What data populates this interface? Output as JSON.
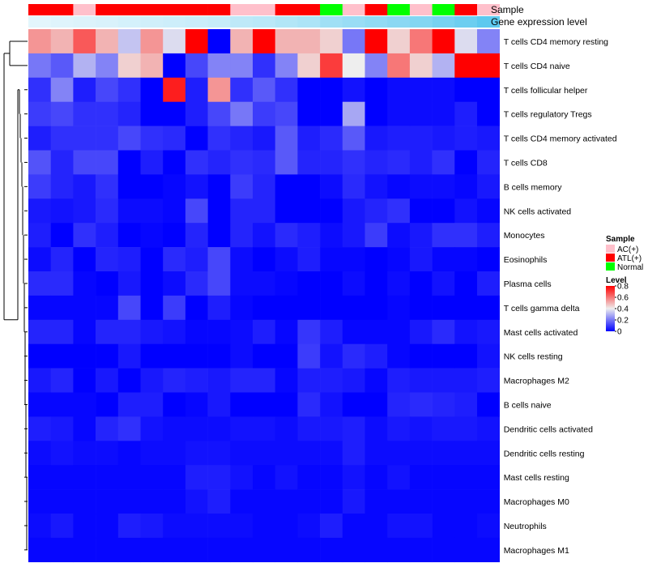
{
  "chart_data": {
    "type": "heatmap",
    "title": "",
    "annotations": {
      "sample_title": "Sample",
      "gene_title": "Gene expression level",
      "samples": [
        "ATL(+)",
        "ATL(+)",
        "AC(+)",
        "ATL(+)",
        "ATL(+)",
        "ATL(+)",
        "ATL(+)",
        "ATL(+)",
        "ATL(+)",
        "AC(+)",
        "AC(+)",
        "ATL(+)",
        "ATL(+)",
        "Normal",
        "AC(+)",
        "ATL(+)",
        "Normal",
        "AC(+)",
        "Normal",
        "ATL(+)",
        "AC(+)"
      ],
      "gene_levels": [
        0.05,
        0.08,
        0.1,
        0.12,
        0.15,
        0.18,
        0.2,
        0.22,
        0.25,
        0.3,
        0.33,
        0.38,
        0.42,
        0.5,
        0.55,
        0.6,
        0.65,
        0.7,
        0.78,
        0.85,
        0.95
      ]
    },
    "sample_legend": {
      "title": "Sample",
      "entries": [
        {
          "label": "AC(+)",
          "color": "#ffc0cb"
        },
        {
          "label": "ATL(+)",
          "color": "#ff0000"
        },
        {
          "label": "Normal",
          "color": "#00ff00"
        }
      ]
    },
    "level_legend": {
      "title": "Level",
      "ticks": [
        "0.8",
        "0.6",
        "0.4",
        "0.2",
        "0"
      ],
      "range": [
        0,
        0.8
      ]
    },
    "rows": [
      "T cells CD4 memory resting",
      "T cells CD4 naive",
      "T cells follicular helper",
      "T cells regulatory  Tregs",
      "T cells CD4 memory activated",
      "T cells CD8",
      "B cells memory",
      "NK cells activated",
      "Monocytes",
      "Eosinophils",
      "Plasma cells",
      "T cells gamma delta",
      "Mast cells activated",
      "NK cells resting",
      "Macrophages M2",
      "B cells naive",
      "Dendritic cells activated",
      "Dendritic cells resting",
      "Mast cells resting",
      "Macrophages M0",
      "Neutrophils",
      "Macrophages M1"
    ],
    "values": [
      [
        0.55,
        0.5,
        0.65,
        0.5,
        0.33,
        0.55,
        0.37,
        0.8,
        0.0,
        0.5,
        0.8,
        0.5,
        0.5,
        0.45,
        0.2,
        0.8,
        0.45,
        0.6,
        0.8,
        0.37,
        0.22
      ],
      [
        0.2,
        0.15,
        0.3,
        0.22,
        0.45,
        0.5,
        0.0,
        0.12,
        0.22,
        0.22,
        0.08,
        0.22,
        0.45,
        0.7,
        0.4,
        0.22,
        0.6,
        0.45,
        0.3,
        0.8,
        0.8
      ],
      [
        0.08,
        0.22,
        0.05,
        0.12,
        0.08,
        0.0,
        0.75,
        0.05,
        0.55,
        0.08,
        0.15,
        0.08,
        0.0,
        0.0,
        0.03,
        0.0,
        0.02,
        0.02,
        0.02,
        0.0,
        0.0
      ],
      [
        0.1,
        0.12,
        0.08,
        0.08,
        0.06,
        0.0,
        0.0,
        0.05,
        0.12,
        0.2,
        0.1,
        0.12,
        0.0,
        0.0,
        0.28,
        0.0,
        0.02,
        0.02,
        0.02,
        0.05,
        0.0
      ],
      [
        0.05,
        0.08,
        0.08,
        0.08,
        0.12,
        0.08,
        0.07,
        0.0,
        0.08,
        0.06,
        0.04,
        0.15,
        0.05,
        0.07,
        0.15,
        0.04,
        0.05,
        0.05,
        0.04,
        0.05,
        0.04
      ],
      [
        0.14,
        0.06,
        0.12,
        0.12,
        0.0,
        0.05,
        0.0,
        0.08,
        0.06,
        0.08,
        0.07,
        0.15,
        0.06,
        0.06,
        0.08,
        0.06,
        0.07,
        0.05,
        0.08,
        0.0,
        0.06
      ],
      [
        0.1,
        0.06,
        0.04,
        0.08,
        0.0,
        0.0,
        0.01,
        0.03,
        0.0,
        0.1,
        0.06,
        0.0,
        0.0,
        0.02,
        0.07,
        0.03,
        0.01,
        0.02,
        0.02,
        0.01,
        0.04
      ],
      [
        0.04,
        0.03,
        0.04,
        0.07,
        0.02,
        0.02,
        0.01,
        0.12,
        0.0,
        0.06,
        0.06,
        0.0,
        0.0,
        0.0,
        0.04,
        0.06,
        0.08,
        0.0,
        0.0,
        0.03,
        0.01
      ],
      [
        0.05,
        0.0,
        0.08,
        0.05,
        0.0,
        0.01,
        0.0,
        0.06,
        0.0,
        0.06,
        0.03,
        0.07,
        0.05,
        0.02,
        0.04,
        0.1,
        0.02,
        0.04,
        0.08,
        0.08,
        0.05
      ],
      [
        0.02,
        0.06,
        0.0,
        0.06,
        0.05,
        0.0,
        0.07,
        0.05,
        0.12,
        0.02,
        0.0,
        0.02,
        0.05,
        0.01,
        0.01,
        0.0,
        0.01,
        0.04,
        0.01,
        0.01,
        0.0
      ],
      [
        0.07,
        0.07,
        0.01,
        0.0,
        0.04,
        0.0,
        0.02,
        0.07,
        0.12,
        0.02,
        0.02,
        0.01,
        0.0,
        0.0,
        0.02,
        0.0,
        0.02,
        0.0,
        0.03,
        0.0,
        0.05
      ],
      [
        0.01,
        0.01,
        0.01,
        0.01,
        0.12,
        0.0,
        0.1,
        0.0,
        0.05,
        0.01,
        0.0,
        0.0,
        0.0,
        0.0,
        0.0,
        0.0,
        0.01,
        0.0,
        0.0,
        0.0,
        0.0
      ],
      [
        0.06,
        0.06,
        0.01,
        0.06,
        0.06,
        0.04,
        0.03,
        0.01,
        0.01,
        0.02,
        0.05,
        0.01,
        0.09,
        0.05,
        0.01,
        0.01,
        0.01,
        0.04,
        0.07,
        0.03,
        0.04
      ],
      [
        0.0,
        0.0,
        0.0,
        0.0,
        0.04,
        0.0,
        0.0,
        0.0,
        0.0,
        0.02,
        0.0,
        0.0,
        0.1,
        0.03,
        0.07,
        0.05,
        0.01,
        0.0,
        0.0,
        0.0,
        0.03
      ],
      [
        0.04,
        0.06,
        0.0,
        0.04,
        0.0,
        0.04,
        0.06,
        0.05,
        0.04,
        0.06,
        0.06,
        0.01,
        0.05,
        0.05,
        0.04,
        0.01,
        0.05,
        0.04,
        0.04,
        0.04,
        0.05
      ],
      [
        0.01,
        0.01,
        0.01,
        0.0,
        0.05,
        0.05,
        0.0,
        0.01,
        0.04,
        0.0,
        0.0,
        0.0,
        0.07,
        0.03,
        0.0,
        0.0,
        0.06,
        0.07,
        0.06,
        0.05,
        0.0
      ],
      [
        0.05,
        0.04,
        0.01,
        0.06,
        0.08,
        0.03,
        0.02,
        0.02,
        0.02,
        0.03,
        0.03,
        0.02,
        0.04,
        0.04,
        0.05,
        0.02,
        0.04,
        0.03,
        0.04,
        0.04,
        0.03
      ],
      [
        0.02,
        0.03,
        0.02,
        0.02,
        0.01,
        0.02,
        0.02,
        0.03,
        0.03,
        0.02,
        0.02,
        0.02,
        0.02,
        0.02,
        0.05,
        0.02,
        0.02,
        0.02,
        0.02,
        0.02,
        0.02
      ],
      [
        0.01,
        0.01,
        0.01,
        0.01,
        0.01,
        0.01,
        0.01,
        0.05,
        0.05,
        0.03,
        0.01,
        0.03,
        0.01,
        0.01,
        0.03,
        0.01,
        0.03,
        0.01,
        0.01,
        0.01,
        0.01
      ],
      [
        0.01,
        0.01,
        0.01,
        0.01,
        0.01,
        0.01,
        0.01,
        0.03,
        0.05,
        0.01,
        0.01,
        0.01,
        0.01,
        0.01,
        0.04,
        0.01,
        0.01,
        0.01,
        0.01,
        0.01,
        0.01
      ],
      [
        0.02,
        0.04,
        0.01,
        0.01,
        0.05,
        0.04,
        0.02,
        0.02,
        0.02,
        0.02,
        0.01,
        0.01,
        0.02,
        0.05,
        0.01,
        0.01,
        0.03,
        0.03,
        0.01,
        0.01,
        0.02
      ],
      [
        0.01,
        0.01,
        0.01,
        0.01,
        0.01,
        0.01,
        0.01,
        0.01,
        0.01,
        0.01,
        0.01,
        0.01,
        0.01,
        0.01,
        0.01,
        0.01,
        0.01,
        0.01,
        0.01,
        0.01,
        0.01
      ]
    ]
  }
}
